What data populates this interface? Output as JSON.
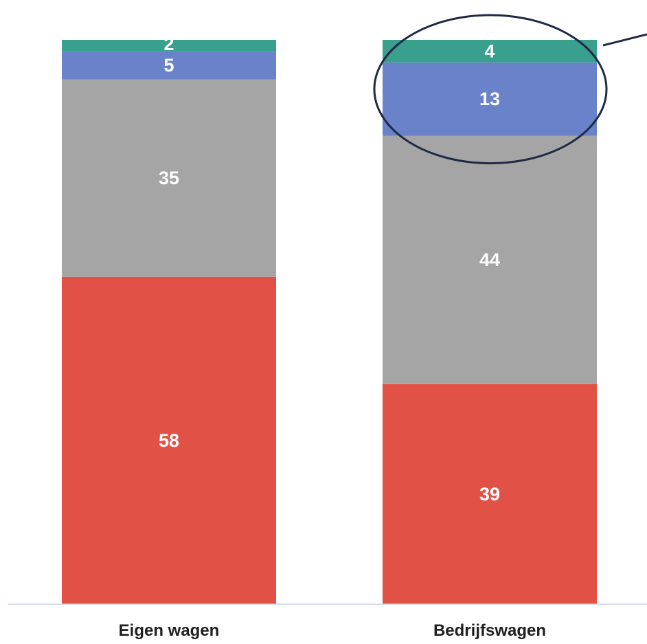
{
  "chart_data": {
    "type": "bar",
    "stacked": true,
    "categories": [
      "Eigen wagen",
      "Bedrijfswagen"
    ],
    "series": [
      {
        "values": [
          58,
          39
        ],
        "color": "#e15146"
      },
      {
        "values": [
          35,
          44
        ],
        "color": "#a5a5a5"
      },
      {
        "values": [
          5,
          13
        ],
        "color": "#6a82c9"
      },
      {
        "values": [
          2,
          4
        ],
        "color": "#3aa08e"
      }
    ],
    "ylim": [
      0,
      100
    ],
    "grid": false,
    "legend": "none",
    "annotations": [
      {
        "type": "ellipse-highlight",
        "category": "Bedrijfswagen",
        "series_index": [
          2,
          3
        ]
      }
    ]
  }
}
